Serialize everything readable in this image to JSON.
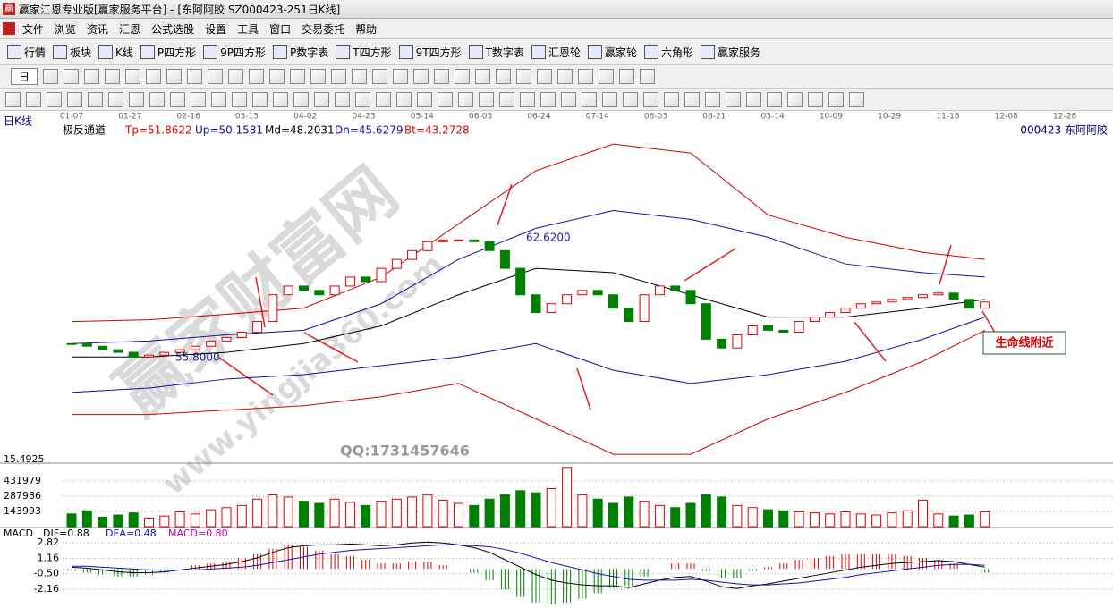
{
  "window": {
    "title": "赢家江恩专业版[赢家服务平台] - [东阿阿胶  SZ000423-251日K线]"
  },
  "menu": [
    "文件",
    "浏览",
    "资讯",
    "汇恩",
    "公式选股",
    "设置",
    "工具",
    "窗口",
    "交易委托",
    "帮助"
  ],
  "toolbar": [
    "行情",
    "板块",
    "K线",
    "P四方形",
    "9P四方形",
    "P数字表",
    "T四方形",
    "9T四方形",
    "T数字表",
    "汇恩轮",
    "赢家轮",
    "六角形",
    "赢家服务"
  ],
  "period": "日",
  "chart_title": "日K线",
  "stock_label": "000423  东阿阿胶",
  "indicator": {
    "name": "极反通道",
    "items": [
      "Tp=51.8622",
      "Up=50.1581",
      "Md=48.2031",
      "Dn=45.6279",
      "Bt=43.2728"
    ]
  },
  "date_labels": [
    "01-07",
    "01-27",
    "02-16",
    "03-13",
    "04-02",
    "04-23",
    "05-14",
    "06-03",
    "06-24",
    "07-14",
    "08-03",
    "08-21",
    "03-14",
    "10-09",
    "10-29",
    "11-18",
    "12-08",
    "12-28"
  ],
  "annotations": {
    "high": "62.6200",
    "low": "55.8000",
    "note": "生命线附近",
    "qq": "QQ:1731457646",
    "scale": "15.4925"
  },
  "watermark": [
    "赢家财富网",
    "www.yingjia360.com"
  ],
  "macd_header": {
    "name": "MACD",
    "dif": "DIF=0.88",
    "dea": "DEA=0.48",
    "macd": "MACD=0.80"
  },
  "chart_data": [
    {
      "type": "candlestick",
      "ylim": [
        49.9,
        68.6
      ],
      "up_color": "#e00000",
      "down_color": "#008000",
      "values": [
        56.56,
        56.41,
        56.21,
        56.06,
        55.8,
        55.9,
        56.06,
        56.21,
        56.41,
        56.71,
        56.91,
        57.21,
        57.82,
        59.34,
        59.84,
        59.59,
        59.34,
        59.84,
        60.35,
        60.09,
        60.85,
        61.36,
        61.86,
        62.37,
        62.47,
        62.47,
        62.37,
        61.86,
        60.85,
        59.34,
        58.33,
        58.83,
        59.34,
        59.59,
        59.34,
        58.58,
        57.82,
        59.34,
        59.84,
        59.59,
        58.83,
        56.81,
        56.31,
        57.06,
        57.57,
        57.32,
        57.21,
        57.82,
        58.07,
        58.33,
        58.58,
        58.83,
        58.93,
        59.08,
        59.19,
        59.34,
        59.44,
        59.08,
        58.58,
        58.93
      ],
      "bands": [
        {
          "color": "#d00000",
          "x": [
            0,
            5,
            10,
            15,
            20,
            25,
            30,
            35,
            40,
            45,
            50,
            55,
            59
          ],
          "values": [
            57.82,
            57.92,
            58.23,
            58.58,
            60.35,
            63.38,
            66.41,
            67.93,
            67.42,
            63.89,
            62.62,
            61.76,
            61.36
          ]
        },
        {
          "color": "#1010a0",
          "x": [
            0,
            5,
            10,
            15,
            20,
            25,
            30,
            35,
            40,
            45,
            50,
            55,
            59
          ],
          "values": [
            56.56,
            56.71,
            57.06,
            57.32,
            58.83,
            61.36,
            63.13,
            64.14,
            63.64,
            62.62,
            61.1,
            60.6,
            60.35
          ]
        },
        {
          "color": "#000000",
          "x": [
            0,
            5,
            10,
            15,
            20,
            25,
            30,
            35,
            40,
            45,
            50,
            55,
            59
          ],
          "values": [
            55.8,
            55.8,
            56.06,
            56.56,
            57.57,
            59.34,
            60.85,
            60.6,
            59.34,
            58.07,
            58.07,
            58.58,
            59.08
          ]
        },
        {
          "color": "#1010a0",
          "x": [
            0,
            5,
            10,
            15,
            20,
            25,
            30,
            35,
            40,
            45,
            50,
            55,
            59
          ],
          "values": [
            53.78,
            54.03,
            54.54,
            54.79,
            55.3,
            55.8,
            56.56,
            55.04,
            54.29,
            54.79,
            55.55,
            56.81,
            58.07
          ]
        },
        {
          "color": "#d00000",
          "x": [
            0,
            5,
            10,
            15,
            20,
            25,
            30,
            35,
            40,
            45,
            50,
            55,
            59
          ],
          "values": [
            52.52,
            52.52,
            52.77,
            53.02,
            53.53,
            54.29,
            52.27,
            50.25,
            50.25,
            52.27,
            53.78,
            55.55,
            57.31
          ]
        }
      ]
    },
    {
      "type": "bar",
      "ylim": [
        0,
        584000
      ],
      "yticks": [
        143993,
        287986,
        431979
      ],
      "values": [
        120000,
        150000,
        90000,
        110000,
        130000,
        80000,
        100000,
        140000,
        120000,
        160000,
        180000,
        200000,
        260000,
        300000,
        280000,
        240000,
        220000,
        260000,
        230000,
        200000,
        240000,
        260000,
        280000,
        300000,
        250000,
        220000,
        200000,
        260000,
        300000,
        340000,
        320000,
        360000,
        560000,
        300000,
        260000,
        220000,
        280000,
        240000,
        200000,
        180000,
        220000,
        300000,
        280000,
        200000,
        180000,
        160000,
        150000,
        140000,
        130000,
        120000,
        140000,
        120000,
        110000,
        130000,
        150000,
        250000,
        120000,
        100000,
        110000,
        140000
      ]
    },
    {
      "type": "macd",
      "ylim": [
        -4,
        3.5
      ],
      "yticks": [
        2.82,
        1.16,
        {
          "value": -0.5,
          "label": "-0.50"
        },
        -2.16
      ],
      "series": [
        {
          "color": "#000000",
          "values": [
            0.2,
            0.1,
            -0.1,
            -0.3,
            -0.4,
            -0.4,
            -0.3,
            -0.1,
            0.1,
            0.3,
            0.5,
            0.8,
            1.2,
            1.8,
            2.3,
            2.5,
            2.6,
            2.6,
            2.7,
            2.6,
            2.5,
            2.6,
            2.8,
            2.9,
            2.8,
            2.6,
            2.3,
            1.8,
            1.0,
            0.2,
            -0.6,
            -1.2,
            -1.5,
            -1.7,
            -1.8,
            -1.8,
            -2.0,
            -1.6,
            -1.2,
            -0.9,
            -0.8,
            -1.3,
            -1.9,
            -2.1,
            -1.8,
            -1.6,
            -1.3,
            -1.0,
            -0.7,
            -0.4,
            -0.1,
            0.2,
            0.4,
            0.6,
            0.7,
            0.8,
            0.9,
            0.8,
            0.5,
            0.2
          ]
        },
        {
          "color": "#1010c0",
          "values": [
            0.3,
            0.3,
            0.2,
            0.1,
            0.0,
            -0.1,
            -0.1,
            -0.1,
            -0.1,
            0.0,
            0.1,
            0.2,
            0.4,
            0.7,
            1.0,
            1.3,
            1.6,
            1.8,
            2.0,
            2.1,
            2.2,
            2.3,
            2.4,
            2.5,
            2.6,
            2.6,
            2.5,
            2.4,
            2.1,
            1.7,
            1.2,
            0.7,
            0.3,
            -0.1,
            -0.5,
            -0.8,
            -1.1,
            -1.2,
            -1.2,
            -1.2,
            -1.1,
            -1.2,
            -1.4,
            -1.6,
            -1.7,
            -1.7,
            -1.6,
            -1.5,
            -1.3,
            -1.1,
            -0.9,
            -0.6,
            -0.4,
            -0.2,
            0.0,
            0.2,
            0.4,
            0.5,
            0.5,
            0.4
          ]
        }
      ],
      "values": [
        -0.2,
        -0.4,
        -0.6,
        -0.8,
        -0.8,
        -0.6,
        -0.4,
        0,
        0.4,
        0.6,
        0.8,
        1.2,
        1.6,
        2.2,
        2.6,
        2.4,
        2.0,
        1.6,
        1.4,
        1.0,
        0.6,
        0.6,
        0.8,
        0.8,
        0.4,
        0,
        -0.4,
        -1.2,
        -2.2,
        -3.0,
        -3.6,
        -3.8,
        -3.6,
        -3.2,
        -2.6,
        -2.0,
        -1.8,
        -0.8,
        0,
        0.6,
        0.6,
        -0.2,
        -1.0,
        -1.0,
        -0.2,
        0.2,
        0.6,
        1.0,
        1.2,
        1.4,
        1.6,
        1.6,
        1.6,
        1.6,
        1.4,
        1.2,
        1.0,
        0.6,
        0,
        -0.4
      ]
    }
  ]
}
